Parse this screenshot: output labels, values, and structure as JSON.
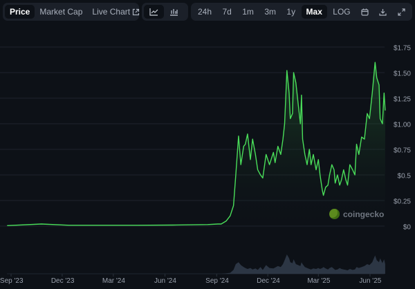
{
  "toolbar": {
    "view_tabs": [
      {
        "label": "Price",
        "active": true
      },
      {
        "label": "Market Cap",
        "active": false
      },
      {
        "label": "Live Chart",
        "active": false,
        "icon": "external-link-icon"
      }
    ],
    "chart_types": [
      {
        "icon": "line-chart-icon",
        "active": true
      },
      {
        "icon": "candlestick-chart-icon",
        "active": false
      }
    ],
    "ranges": [
      {
        "label": "24h",
        "active": false
      },
      {
        "label": "7d",
        "active": false
      },
      {
        "label": "1m",
        "active": false
      },
      {
        "label": "3m",
        "active": false
      },
      {
        "label": "1y",
        "active": false
      },
      {
        "label": "Max",
        "active": true
      },
      {
        "label": "LOG",
        "active": false
      }
    ],
    "actions": [
      "calendar-icon",
      "download-icon",
      "expand-icon"
    ]
  },
  "watermark": "coingecko",
  "colors": {
    "background": "#0d1117",
    "line": "#4ade5a",
    "volume": "#2c3644",
    "grid": "#1e242d"
  },
  "chart_data": {
    "type": "area",
    "title": "",
    "xlabel": "",
    "ylabel": "",
    "y_ticks": [
      "$0",
      "$0.25",
      "$0.5",
      "$0.75",
      "$1.00",
      "$1.25",
      "$1.50",
      "$1.75"
    ],
    "y_tick_values": [
      0,
      0.25,
      0.5,
      0.75,
      1.0,
      1.25,
      1.5,
      1.75
    ],
    "ylim": [
      0,
      1.75
    ],
    "x_ticks": [
      "Sep '23",
      "Dec '23",
      "Mar '24",
      "Jun '24",
      "Sep '24",
      "Dec '24",
      "Mar '25",
      "Jun '25"
    ],
    "x_tick_dates": [
      "2023-09-01",
      "2023-12-01",
      "2024-03-01",
      "2024-06-01",
      "2024-09-01",
      "2024-12-01",
      "2025-03-01",
      "2025-06-01"
    ],
    "grid": true,
    "y_axis_position": "right",
    "series": [
      {
        "x": [
          "2023-08-25",
          "2023-10-25",
          "2023-12-13",
          "2024-04-14",
          "2024-06-15",
          "2024-08-16",
          "2024-09-03",
          "2024-09-09",
          "2024-09-18",
          "2024-09-25",
          "2024-10-01",
          "2024-10-05",
          "2024-10-10",
          "2024-10-14",
          "2024-10-19",
          "2024-10-22",
          "2024-10-26",
          "2024-10-31",
          "2024-11-04",
          "2024-11-09",
          "2024-11-13",
          "2024-11-18",
          "2024-11-22",
          "2024-11-28",
          "2024-12-04",
          "2024-12-11",
          "2024-12-14",
          "2024-12-19",
          "2024-12-24",
          "2024-12-28",
          "2024-12-31",
          "2025-01-04",
          "2025-01-08",
          "2025-01-10",
          "2025-01-14",
          "2025-01-16",
          "2025-01-20",
          "2025-01-24",
          "2025-01-28",
          "2025-01-30",
          "2025-02-01",
          "2025-02-05",
          "2025-02-09",
          "2025-02-13",
          "2025-02-16",
          "2025-02-20",
          "2025-02-25",
          "2025-03-01",
          "2025-03-04",
          "2025-03-08",
          "2025-03-10",
          "2025-03-14",
          "2025-03-18",
          "2025-03-21",
          "2025-03-25",
          "2025-03-29",
          "2025-03-31",
          "2025-04-04",
          "2025-04-08",
          "2025-04-11",
          "2025-04-15",
          "2025-04-19",
          "2025-04-22",
          "2025-04-26",
          "2025-05-01",
          "2025-05-05",
          "2025-05-08",
          "2025-05-12",
          "2025-05-17",
          "2025-05-22",
          "2025-05-27",
          "2025-05-31",
          "2025-06-05",
          "2025-06-10",
          "2025-06-13",
          "2025-06-17",
          "2025-06-19",
          "2025-06-23",
          "2025-06-26",
          "2025-06-28"
        ],
        "values": [
          0.005,
          0.02,
          0.008,
          0.008,
          0.01,
          0.015,
          0.02,
          0.02,
          0.05,
          0.1,
          0.2,
          0.5,
          0.88,
          0.6,
          0.78,
          0.8,
          0.9,
          0.65,
          0.85,
          0.7,
          0.55,
          0.5,
          0.47,
          0.7,
          0.6,
          0.72,
          0.62,
          0.78,
          0.7,
          0.85,
          1.0,
          1.52,
          1.3,
          1.05,
          1.1,
          1.5,
          1.4,
          1.2,
          1.0,
          1.28,
          0.85,
          0.7,
          0.6,
          0.75,
          0.6,
          0.7,
          0.55,
          0.65,
          0.5,
          0.35,
          0.3,
          0.38,
          0.4,
          0.5,
          0.6,
          0.55,
          0.42,
          0.5,
          0.4,
          0.45,
          0.55,
          0.45,
          0.4,
          0.6,
          0.55,
          0.5,
          0.8,
          0.7,
          0.87,
          0.85,
          1.1,
          1.05,
          1.3,
          1.6,
          1.45,
          1.38,
          1.05,
          1.0,
          1.3,
          1.13
        ]
      }
    ],
    "volume_relative": [
      0,
      0,
      0,
      0,
      0,
      0,
      0,
      0,
      0.02,
      0.05,
      0.2,
      0.5,
      0.6,
      0.45,
      0.35,
      0.3,
      0.25,
      0.3,
      0.22,
      0.28,
      0.2,
      0.35,
      0.2,
      0.45,
      0.3,
      0.28,
      0.32,
      0.4,
      0.35,
      0.5,
      0.7,
      1.0,
      0.8,
      0.6,
      0.55,
      0.75,
      0.5,
      0.45,
      0.4,
      0.6,
      0.5,
      0.35,
      0.3,
      0.25,
      0.22,
      0.28,
      0.25,
      0.3,
      0.25,
      0.3,
      0.35,
      0.28,
      0.22,
      0.3,
      0.35,
      0.25,
      0.2,
      0.22,
      0.3,
      0.25,
      0.22,
      0.2,
      0.18,
      0.25,
      0.2,
      0.22,
      0.35,
      0.3,
      0.35,
      0.4,
      0.5,
      0.45,
      0.6,
      0.95,
      0.7,
      0.6,
      0.8,
      0.55,
      0.75,
      0.5
    ]
  }
}
